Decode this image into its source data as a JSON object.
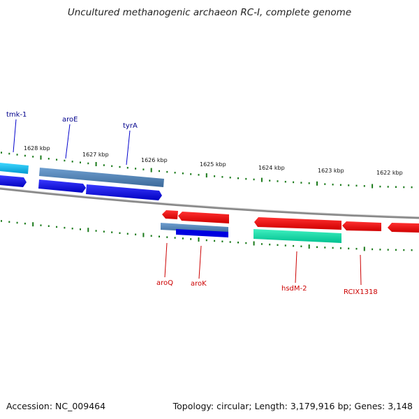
{
  "title": "Uncultured methanogenic archaeon RC-I, complete genome",
  "footer": {
    "accession": "Accession: NC_009464",
    "summary": "Topology: circular; Length: 3,179,916 bp; Genes: 3,148"
  },
  "ticks": [
    "1628 kbp",
    "1627 kbp",
    "1626 kbp",
    "1625 kbp",
    "1624 kbp",
    "1623 kbp",
    "1622 kbp"
  ],
  "genes_top": [
    "tmk-1",
    "aroE",
    "tyrA"
  ],
  "genes_bottom": [
    "aroQ",
    "aroK",
    "hsdM-2",
    "RCIX1318"
  ],
  "colors": {
    "forward_gene": "#0000e6",
    "forward_cds": "#4a7fb5",
    "cyan_gene": "#00b8f0",
    "reverse_gene": "#ee0000",
    "reverse_cds": "#00d8a0",
    "tick": "#1a7a1a",
    "backbone": "#888888",
    "label_forward": "#00008b",
    "label_reverse": "#cc0000"
  }
}
